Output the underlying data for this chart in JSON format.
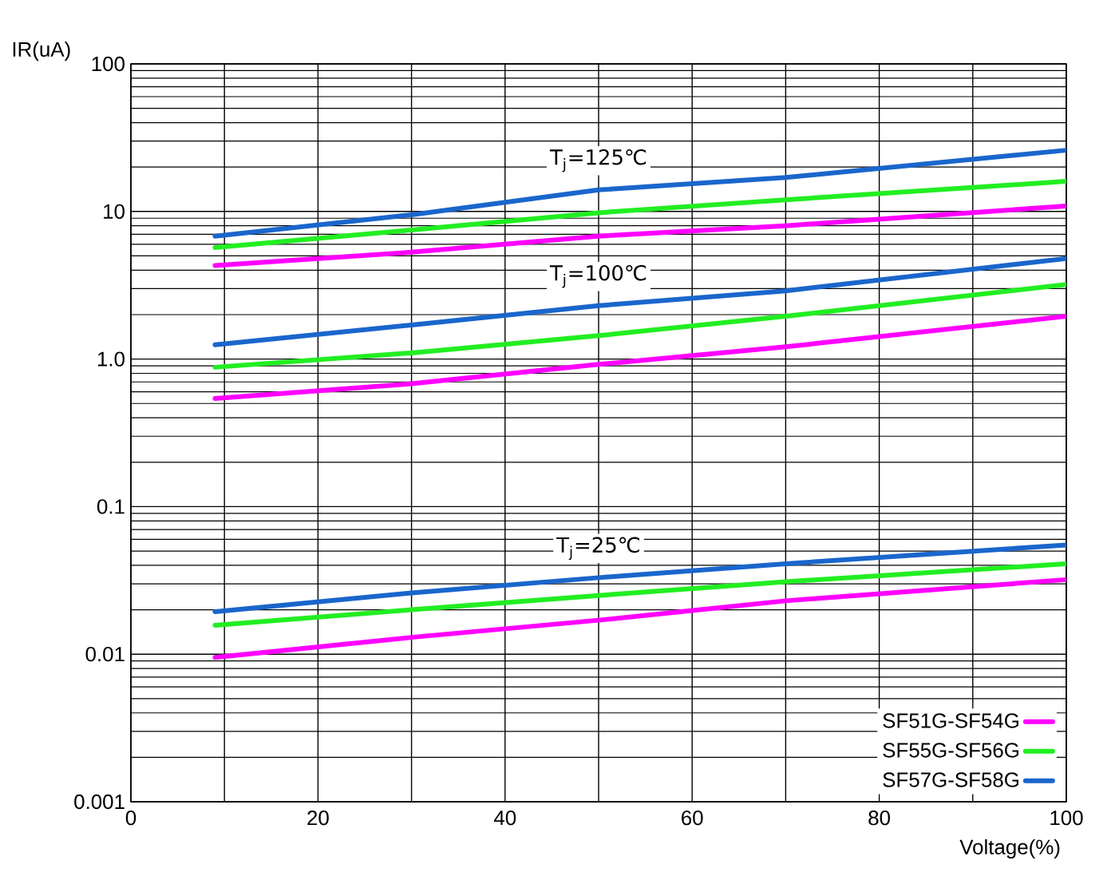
{
  "chart_data": {
    "type": "line",
    "xlabel": "Voltage(%)",
    "ylabel": "IR(uA)",
    "xlim": [
      0,
      100
    ],
    "ylim": [
      0.001,
      100
    ],
    "log": "y",
    "grid": true,
    "legend": "bottom right",
    "marker": "none",
    "line_style": "solid",
    "xticks": [
      0,
      {
        "value": 10,
        "label": null
      },
      20,
      {
        "value": 30,
        "label": null
      },
      40,
      {
        "value": 50,
        "label": null
      },
      60,
      {
        "value": 70,
        "label": null
      },
      80,
      {
        "value": 90,
        "label": null
      },
      100
    ],
    "yticks": [
      0.001,
      0.01,
      0.1,
      {
        "value": 1,
        "label": "1.0"
      },
      10,
      100
    ],
    "series": [
      {
        "name": "SF51G-SF54G",
        "color": "#ff00ff",
        "x": [
          9,
          30,
          50,
          70,
          100
        ],
        "values": [
          4.3,
          5.3,
          6.8,
          8.0,
          10.9
        ]
      },
      {
        "name": "SF55G-SF56G",
        "color": "#22ee22",
        "x": [
          9,
          30,
          50,
          70,
          100
        ],
        "values": [
          5.7,
          7.5,
          9.8,
          12,
          16
        ]
      },
      {
        "name": "SF57G-SF58G",
        "color": "#1a66cc",
        "x": [
          9,
          30,
          50,
          70,
          100
        ],
        "values": [
          6.8,
          9.5,
          14,
          17,
          26
        ]
      },
      {
        "color": "#ff00ff",
        "x": [
          9,
          30,
          50,
          70,
          100
        ],
        "values": [
          0.54,
          0.68,
          0.92,
          1.21,
          1.95
        ]
      },
      {
        "color": "#22ee22",
        "x": [
          9,
          30,
          50,
          70,
          100
        ],
        "values": [
          0.88,
          1.1,
          1.44,
          1.95,
          3.2
        ]
      },
      {
        "color": "#1a66cc",
        "x": [
          9,
          30,
          50,
          70,
          100
        ],
        "values": [
          1.25,
          1.7,
          2.3,
          2.9,
          4.8
        ]
      },
      {
        "color": "#ff00ff",
        "x": [
          9,
          30,
          50,
          70,
          100
        ],
        "values": [
          0.0095,
          0.013,
          0.017,
          0.023,
          0.032
        ]
      },
      {
        "color": "#22ee22",
        "x": [
          9,
          30,
          50,
          70,
          100
        ],
        "values": [
          0.0157,
          0.02,
          0.025,
          0.031,
          0.041
        ]
      },
      {
        "color": "#1a66cc",
        "x": [
          9,
          30,
          50,
          70,
          100
        ],
        "values": [
          0.0194,
          0.026,
          0.033,
          0.041,
          0.055
        ]
      }
    ],
    "annotations": [
      "T$_{j}$=125℃",
      "T$_{j}$=100℃",
      "T$_{j}$=25℃"
    ]
  }
}
